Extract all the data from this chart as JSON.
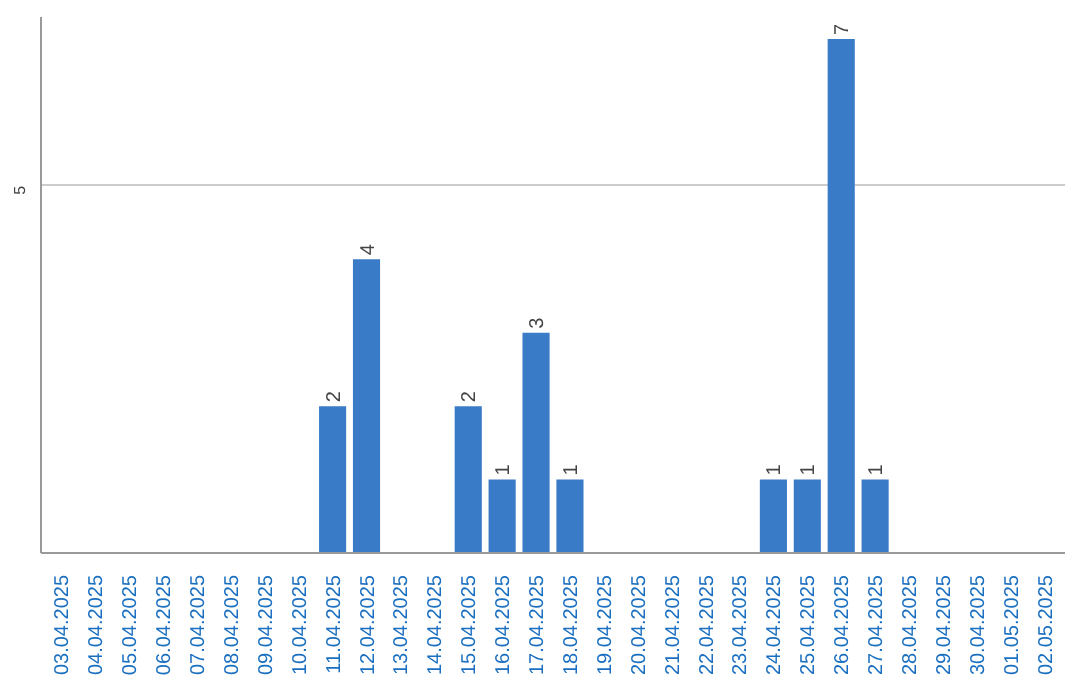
{
  "chart_data": {
    "type": "bar",
    "categories": [
      "03.04.2025",
      "04.04.2025",
      "05.04.2025",
      "06.04.2025",
      "07.04.2025",
      "08.04.2025",
      "09.04.2025",
      "10.04.2025",
      "11.04.2025",
      "12.04.2025",
      "13.04.2025",
      "14.04.2025",
      "15.04.2025",
      "16.04.2025",
      "17.04.2025",
      "18.04.2025",
      "19.04.2025",
      "20.04.2025",
      "21.04.2025",
      "22.04.2025",
      "23.04.2025",
      "24.04.2025",
      "25.04.2025",
      "26.04.2025",
      "27.04.2025",
      "28.04.2025",
      "29.04.2025",
      "30.04.2025",
      "01.05.2025",
      "02.05.2025"
    ],
    "values": [
      0,
      0,
      0,
      0,
      0,
      0,
      0,
      0,
      2,
      4,
      0,
      0,
      2,
      1,
      3,
      1,
      0,
      0,
      0,
      0,
      0,
      1,
      1,
      7,
      1,
      0,
      0,
      0,
      0,
      0
    ],
    "value_labels": [
      null,
      null,
      null,
      null,
      null,
      null,
      null,
      null,
      "2",
      "4",
      null,
      null,
      "2",
      "1",
      "3",
      "1",
      null,
      null,
      null,
      null,
      null,
      "1",
      "1",
      "7",
      "1",
      null,
      null,
      null,
      null,
      null
    ],
    "color": "#3a7bc8",
    "ylim": [
      0,
      7.3
    ],
    "yticks": [
      5
    ],
    "grid": "y"
  }
}
